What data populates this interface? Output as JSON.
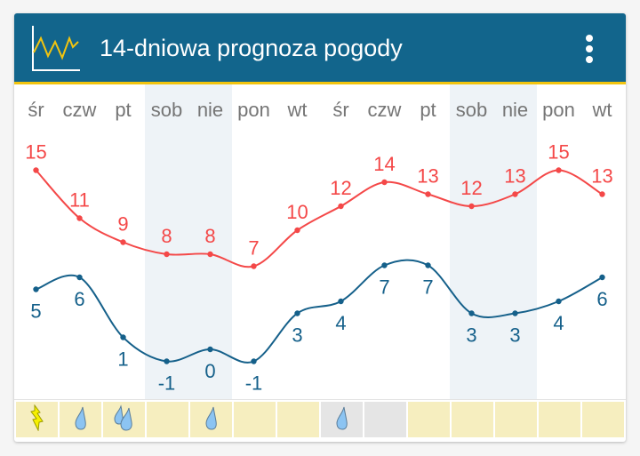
{
  "header": {
    "title": "14-dniowa prognoza pogody",
    "logo_icon": "chart-line-icon",
    "menu_icon": "more-vertical-icon"
  },
  "colors": {
    "header": "#12658c",
    "accent": "#f2c40f",
    "high": "#f44848",
    "low": "#15608a",
    "weekend": "#eef3f7",
    "precip_cell": "#f6eebf",
    "precip_cell_gray": "#e5e5e5"
  },
  "days": [
    "śr",
    "czw",
    "pt",
    "sob",
    "nie",
    "pon",
    "wt",
    "śr",
    "czw",
    "pt",
    "sob",
    "nie",
    "pon",
    "wt"
  ],
  "weekend_indices": [
    3,
    4,
    10,
    11
  ],
  "highs": [
    15,
    11,
    9,
    8,
    8,
    7,
    10,
    12,
    14,
    13,
    12,
    13,
    15,
    13
  ],
  "lows": [
    5,
    6,
    1,
    -1,
    0,
    -1,
    3,
    4,
    7,
    7,
    3,
    3,
    4,
    6
  ],
  "precip": [
    {
      "icon": "lightning-icon",
      "gray": false
    },
    {
      "icon": "drop-icon",
      "gray": false
    },
    {
      "icon": "drops-icon",
      "gray": false
    },
    {
      "icon": "",
      "gray": false
    },
    {
      "icon": "drop-icon",
      "gray": false
    },
    {
      "icon": "",
      "gray": false
    },
    {
      "icon": "",
      "gray": false
    },
    {
      "icon": "drop-icon",
      "gray": true
    },
    {
      "icon": "",
      "gray": true
    },
    {
      "icon": "",
      "gray": false
    },
    {
      "icon": "",
      "gray": false
    },
    {
      "icon": "",
      "gray": false
    },
    {
      "icon": "",
      "gray": false
    },
    {
      "icon": "",
      "gray": false
    }
  ]
}
